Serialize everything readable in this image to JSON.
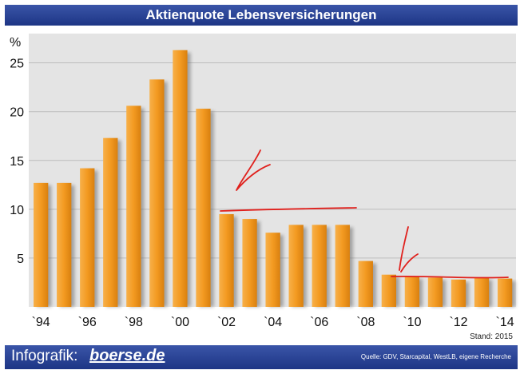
{
  "title": "Aktienquote Lebensversicherungen",
  "footer": {
    "prefix": "Infografik:",
    "brand": "boerse.de",
    "source": "Quelle: GDV, Starcapital, WestLB, eigene Recherche"
  },
  "stand": "Stand: 2015",
  "colors": {
    "header": "#2a4596",
    "bar": "#f39a21",
    "plot_bg": "#e4e4e4",
    "annotation": "#e0201c"
  },
  "chart_data": {
    "type": "bar",
    "title": "Aktienquote Lebensversicherungen",
    "ylabel": "%",
    "xlabel": "",
    "ylim": [
      0,
      28
    ],
    "yticks": [
      5,
      10,
      15,
      20,
      25
    ],
    "grid": true,
    "categories": [
      "1994",
      "1995",
      "1996",
      "1997",
      "1998",
      "1999",
      "2000",
      "2001",
      "2002",
      "2003",
      "2004",
      "2005",
      "2006",
      "2007",
      "2008",
      "2009",
      "2010",
      "2011",
      "2012",
      "2013",
      "2014"
    ],
    "values": [
      12.7,
      12.7,
      14.2,
      17.3,
      20.6,
      23.3,
      26.3,
      20.3,
      9.5,
      9.0,
      7.6,
      8.4,
      8.4,
      8.4,
      4.7,
      3.3,
      3.1,
      3.0,
      2.8,
      3.0,
      2.9
    ],
    "xtick_labels": [
      "`94",
      "`96",
      "`98",
      "`00",
      "`02",
      "`04",
      "`06",
      "`08",
      "`10",
      "`12",
      "`14"
    ],
    "annotations": [
      "red-arrow-2002",
      "red-line-2001-2008",
      "red-arrow-2010",
      "red-line-2009-2014"
    ]
  }
}
